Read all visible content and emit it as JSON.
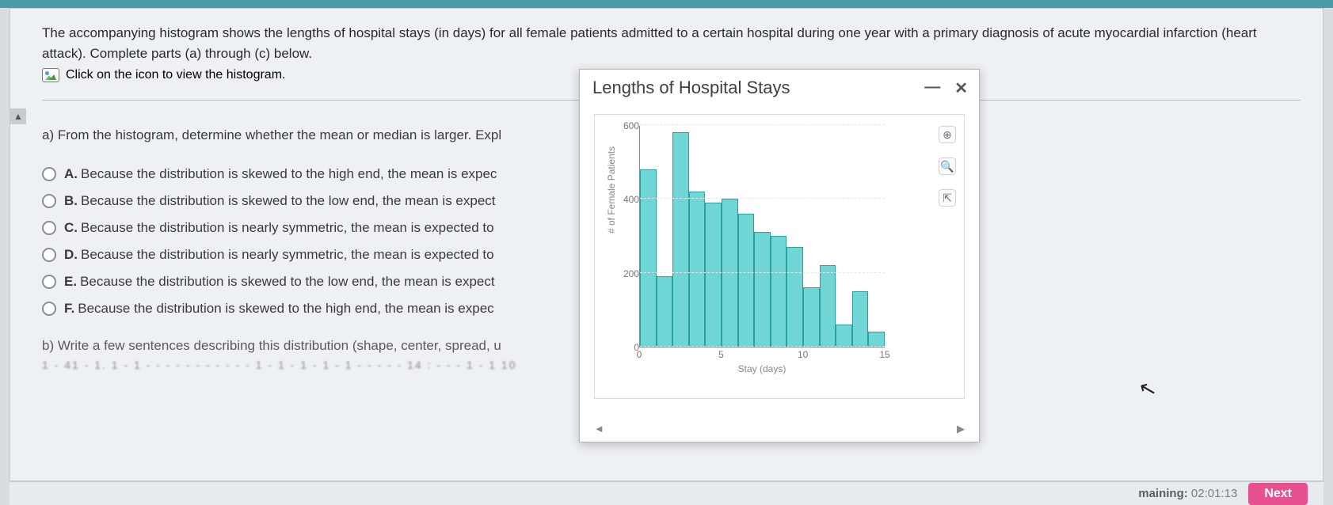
{
  "problem": {
    "text": "The accompanying histogram shows the lengths of hospital stays (in days) for all female patients admitted to a certain hospital during one year with a primary diagnosis of acute myocardial infarction (heart attack). Complete parts (a) through (c) below.",
    "link": "Click on the icon to view the histogram."
  },
  "partA": {
    "prompt": "a) From the histogram, determine whether the mean or median is larger. Expl",
    "options": [
      {
        "letter": "A.",
        "text": "Because the distribution is skewed to the high end, the mean is expec"
      },
      {
        "letter": "B.",
        "text": "Because the distribution is skewed to the low end, the mean is expect"
      },
      {
        "letter": "C.",
        "text": "Because the distribution is nearly symmetric, the mean is expected to"
      },
      {
        "letter": "D.",
        "text": "Because the distribution is nearly symmetric, the mean is expected to"
      },
      {
        "letter": "E.",
        "text": "Because the distribution is skewed to the low end, the mean is expect"
      },
      {
        "letter": "F.",
        "text": "Because the distribution is skewed to the high end, the mean is expec"
      }
    ]
  },
  "partB": {
    "prompt": "b) Write a few sentences describing this distribution (shape, center, spread, u",
    "blur": "1 - 41 - 1. 1 - 1 - - - - - - - - - - - 1 - 1 - 1 - 1 - 1 - - - - - 14 : - - - 1 - 1 10"
  },
  "popup": {
    "title": "Lengths of Hospital Stays",
    "minimize": "—",
    "close": "✕",
    "yLabel": "# of Female Patients",
    "xLabel": "Stay (days)",
    "nav_prev": "◄",
    "nav_next": "▶"
  },
  "chart": {
    "type": "histogram",
    "yMax": 600,
    "yTicks": [
      0,
      200,
      400,
      600
    ],
    "xTicks": [
      0,
      5,
      10,
      15
    ],
    "xMax": 15,
    "bar_color": "#6fd5d5",
    "bar_border": "#2aa0a0",
    "background": "#ffffff",
    "barWidthDays": 1,
    "bars": [
      480,
      190,
      580,
      420,
      390,
      400,
      360,
      310,
      300,
      270,
      160,
      220,
      60,
      150,
      40
    ]
  },
  "tools": {
    "zoom_in": "⊕",
    "zoom_out": "🔍",
    "expand": "⇱"
  },
  "footer": {
    "timer_label": "maining:",
    "timer_value": "02:01:13",
    "next": "Next"
  },
  "cursor": "↖"
}
